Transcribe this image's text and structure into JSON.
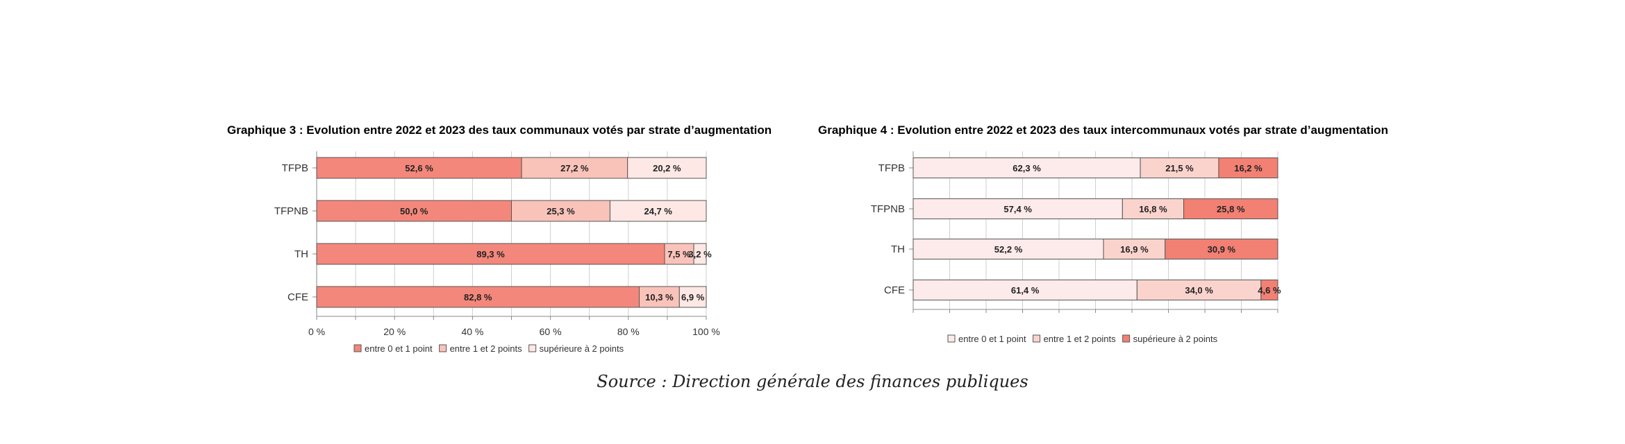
{
  "colors": {
    "entre_0_et_1": "#f4877b",
    "entre_1_et_2": "#f9c3ba",
    "sup_2": "#fde8e5",
    "inter_entre_0_et_1": "#fdeaea",
    "inter_entre_1_et_2": "#fbd3cd",
    "inter_sup_2": "#f28073"
  },
  "source": "Source : Direction générale des finances publiques",
  "chart_data": [
    {
      "type": "bar",
      "orientation": "horizontal",
      "stacked": true,
      "title": "Graphique 3 : Evolution entre 2022 et 2023 des taux communaux votés par strate d’augmentation",
      "categories": [
        "TFPB",
        "TFPNB",
        "TH",
        "CFE"
      ],
      "series": [
        {
          "name": "entre 0 et 1 point",
          "values": [
            52.6,
            50.0,
            89.3,
            82.8
          ],
          "labels": [
            "52,6 %",
            "50,0 %",
            "89,3 %",
            "82,8 %"
          ]
        },
        {
          "name": "entre 1 et 2 points",
          "values": [
            27.2,
            25.3,
            7.5,
            10.3
          ],
          "labels": [
            "27,2 %",
            "25,3 %",
            "7,5 %",
            "10,3 %"
          ]
        },
        {
          "name": "supérieure à 2 points",
          "values": [
            20.2,
            24.7,
            3.2,
            6.9
          ],
          "labels": [
            "20,2 %",
            "24,7 %",
            "3,2 %",
            "6,9 %"
          ]
        }
      ],
      "xlim": [
        0,
        100
      ],
      "xticks": [
        "0 %",
        "20 %",
        "40 %",
        "60 %",
        "80 %",
        "100 %"
      ],
      "grid": true,
      "legend": "bottom"
    },
    {
      "type": "bar",
      "orientation": "horizontal",
      "stacked": true,
      "title": "Graphique 4 : Evolution entre 2022 et 2023 des taux intercommunaux votés par strate d’augmentation",
      "categories": [
        "TFPB",
        "TFPNB",
        "TH",
        "CFE"
      ],
      "series": [
        {
          "name": "entre 0 et 1 point",
          "values": [
            62.3,
            57.4,
            52.2,
            61.4
          ],
          "labels": [
            "62,3 %",
            "57,4 %",
            "52,2 %",
            "61,4 %"
          ]
        },
        {
          "name": "entre 1 et 2 points",
          "values": [
            21.5,
            16.8,
            16.9,
            34.0
          ],
          "labels": [
            "21,5 %",
            "16,8 %",
            "16,9 %",
            "34,0 %"
          ]
        },
        {
          "name": "supérieure à 2 points",
          "values": [
            16.2,
            25.8,
            30.9,
            4.6
          ],
          "labels": [
            "16,2 %",
            "25,8 %",
            "30,9 %",
            "4,6 %"
          ]
        }
      ],
      "xlim": [
        0,
        100
      ],
      "xticks": [],
      "grid": true,
      "legend": "bottom"
    }
  ]
}
